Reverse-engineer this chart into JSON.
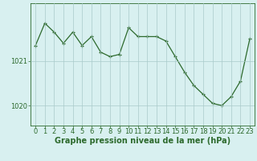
{
  "x": [
    0,
    1,
    2,
    3,
    4,
    5,
    6,
    7,
    8,
    9,
    10,
    11,
    12,
    13,
    14,
    15,
    16,
    17,
    18,
    19,
    20,
    21,
    22,
    23
  ],
  "y": [
    1021.35,
    1021.85,
    1021.65,
    1021.4,
    1021.65,
    1021.35,
    1021.55,
    1021.2,
    1021.1,
    1021.15,
    1021.75,
    1021.55,
    1021.55,
    1021.55,
    1021.45,
    1021.1,
    1020.75,
    1020.45,
    1020.25,
    1020.05,
    1020.0,
    1020.2,
    1020.55,
    1021.5
  ],
  "line_color": "#2d6a2d",
  "marker_color": "#2d6a2d",
  "bg_color": "#d8f0f0",
  "plot_bg_color": "#d8f0f0",
  "grid_color": "#aacaca",
  "axis_color": "#2d6a2d",
  "xlabel": "Graphe pression niveau de la mer (hPa)",
  "yticks": [
    1020,
    1021
  ],
  "ylim": [
    1019.55,
    1022.3
  ],
  "xlim": [
    -0.5,
    23.5
  ],
  "xticks": [
    0,
    1,
    2,
    3,
    4,
    5,
    6,
    7,
    8,
    9,
    10,
    11,
    12,
    13,
    14,
    15,
    16,
    17,
    18,
    19,
    20,
    21,
    22,
    23
  ],
  "xlabel_fontsize": 7.0,
  "tick_fontsize": 6.0
}
